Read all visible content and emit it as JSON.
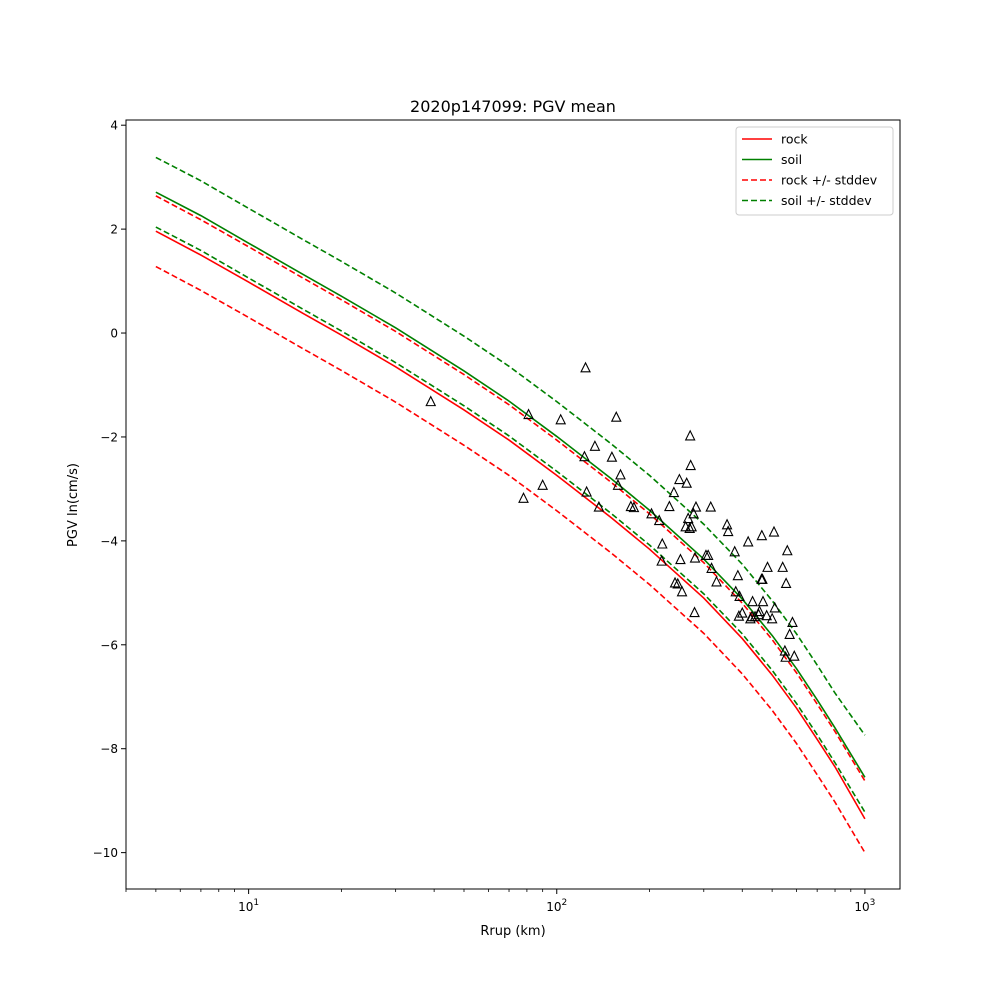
{
  "chart_data": {
    "type": "line",
    "title": "2020p147099: PGV mean",
    "xlabel": "Rrup (km)",
    "ylabel": "PGV ln(cm/s)",
    "xscale": "log",
    "xlim": [
      4,
      1300
    ],
    "ylim": [
      -10.7,
      4.1
    ],
    "grid": false,
    "legend_position": "top-right",
    "x_ticks": [
      {
        "value": 10,
        "base": "10",
        "exp": "1"
      },
      {
        "value": 100,
        "base": "10",
        "exp": "2"
      },
      {
        "value": 1000,
        "base": "10",
        "exp": "3"
      }
    ],
    "y_ticks": [
      {
        "value": 4,
        "label": "4"
      },
      {
        "value": 2,
        "label": "2"
      },
      {
        "value": 0,
        "label": "0"
      },
      {
        "value": -2,
        "label": "−2"
      },
      {
        "value": -4,
        "label": "−4"
      },
      {
        "value": -6,
        "label": "−6"
      },
      {
        "value": -8,
        "label": "−8"
      },
      {
        "value": -10,
        "label": "−10"
      }
    ],
    "x": [
      5,
      7,
      10,
      15,
      20,
      30,
      50,
      70,
      100,
      150,
      200,
      300,
      400,
      500,
      600,
      700,
      800,
      1000
    ],
    "series": [
      {
        "name": "rock",
        "color": "#ff0000",
        "dash": "solid",
        "values": [
          1.96,
          1.5,
          0.98,
          0.38,
          -0.04,
          -0.65,
          -1.48,
          -2.06,
          -2.74,
          -3.55,
          -4.16,
          -5.1,
          -5.88,
          -6.58,
          -7.22,
          -7.82,
          -8.35,
          -9.35
        ]
      },
      {
        "name": "soil",
        "color": "#008000",
        "dash": "solid",
        "values": [
          2.71,
          2.26,
          1.73,
          1.13,
          0.71,
          0.1,
          -0.73,
          -1.31,
          -1.99,
          -2.8,
          -3.41,
          -4.35,
          -5.12,
          -5.82,
          -6.46,
          -7.06,
          -7.6,
          -8.55
        ]
      },
      {
        "name": "rock +/- stddev",
        "color": "#ff0000",
        "dash": "dashed",
        "values": [
          2.64,
          2.18,
          1.66,
          1.06,
          0.64,
          0.03,
          -0.8,
          -1.38,
          -2.06,
          -2.87,
          -3.48,
          -4.42,
          -5.2,
          -5.9,
          -6.54,
          -7.14,
          -7.67,
          -8.62
        ]
      },
      {
        "name": "",
        "color": "#ff0000",
        "dash": "dashed",
        "values": [
          1.28,
          0.82,
          0.3,
          -0.3,
          -0.72,
          -1.33,
          -2.16,
          -2.74,
          -3.42,
          -4.23,
          -4.84,
          -5.78,
          -6.56,
          -7.26,
          -7.9,
          -8.5,
          -9.03,
          -10.0
        ]
      },
      {
        "name": "soil +/- stddev",
        "color": "#008000",
        "dash": "dashed",
        "values": [
          3.38,
          2.93,
          2.4,
          1.8,
          1.38,
          0.77,
          -0.06,
          -0.64,
          -1.32,
          -2.13,
          -2.74,
          -3.68,
          -4.45,
          -5.15,
          -5.79,
          -6.39,
          -6.93,
          -7.74
        ]
      },
      {
        "name": "",
        "color": "#008000",
        "dash": "dashed",
        "values": [
          2.04,
          1.59,
          1.06,
          0.46,
          0.04,
          -0.57,
          -1.4,
          -1.98,
          -2.66,
          -3.47,
          -4.08,
          -5.02,
          -5.79,
          -6.49,
          -7.13,
          -7.73,
          -8.27,
          -9.22
        ]
      }
    ],
    "observations": {
      "marker": "triangle",
      "points": [
        [
          39,
          -1.32
        ],
        [
          78,
          -3.18
        ],
        [
          81,
          -1.57
        ],
        [
          90,
          -2.93
        ],
        [
          103,
          -1.67
        ],
        [
          124,
          -0.67
        ],
        [
          123,
          -2.38
        ],
        [
          125,
          -3.06
        ],
        [
          133,
          -2.18
        ],
        [
          137,
          -3.35
        ],
        [
          151,
          -2.39
        ],
        [
          156,
          -1.62
        ],
        [
          158,
          -2.93
        ],
        [
          161,
          -2.73
        ],
        [
          174,
          -3.34
        ],
        [
          178,
          -3.36
        ],
        [
          203,
          -3.48
        ],
        [
          215,
          -3.61
        ],
        [
          220,
          -4.06
        ],
        [
          219,
          -4.39
        ],
        [
          232,
          -3.34
        ],
        [
          240,
          -3.07
        ],
        [
          242,
          -4.81
        ],
        [
          247,
          -4.83
        ],
        [
          250,
          -2.82
        ],
        [
          252,
          -4.36
        ],
        [
          255,
          -4.98
        ],
        [
          262,
          -3.73
        ],
        [
          264,
          -2.89
        ],
        [
          267,
          -3.57
        ],
        [
          270,
          -3.76
        ],
        [
          271,
          -1.98
        ],
        [
          272,
          -2.55
        ],
        [
          274,
          -3.73
        ],
        [
          278,
          -3.48
        ],
        [
          280,
          -5.38
        ],
        [
          281,
          -4.33
        ],
        [
          283,
          -3.35
        ],
        [
          305,
          -4.28
        ],
        [
          310,
          -4.28
        ],
        [
          316,
          -3.35
        ],
        [
          318,
          -4.53
        ],
        [
          330,
          -4.79
        ],
        [
          357,
          -3.69
        ],
        [
          360,
          -3.82
        ],
        [
          378,
          -4.21
        ],
        [
          381,
          -4.98
        ],
        [
          387,
          -4.67
        ],
        [
          390,
          -5.45
        ],
        [
          392,
          -5.07
        ],
        [
          400,
          -5.39
        ],
        [
          418,
          -4.02
        ],
        [
          425,
          -5.5
        ],
        [
          430,
          -5.46
        ],
        [
          432,
          -5.17
        ],
        [
          440,
          -5.46
        ],
        [
          452,
          -5.42
        ],
        [
          455,
          -5.36
        ],
        [
          462,
          -4.74
        ],
        [
          463,
          -3.9
        ],
        [
          465,
          -4.74
        ],
        [
          467,
          -5.17
        ],
        [
          480,
          -5.44
        ],
        [
          483,
          -4.51
        ],
        [
          500,
          -5.5
        ],
        [
          507,
          -3.83
        ],
        [
          510,
          -5.29
        ],
        [
          541,
          -4.51
        ],
        [
          550,
          -6.12
        ],
        [
          553,
          -6.24
        ],
        [
          555,
          -4.82
        ],
        [
          560,
          -4.19
        ],
        [
          570,
          -5.8
        ],
        [
          582,
          -5.57
        ],
        [
          590,
          -6.22
        ]
      ]
    }
  }
}
